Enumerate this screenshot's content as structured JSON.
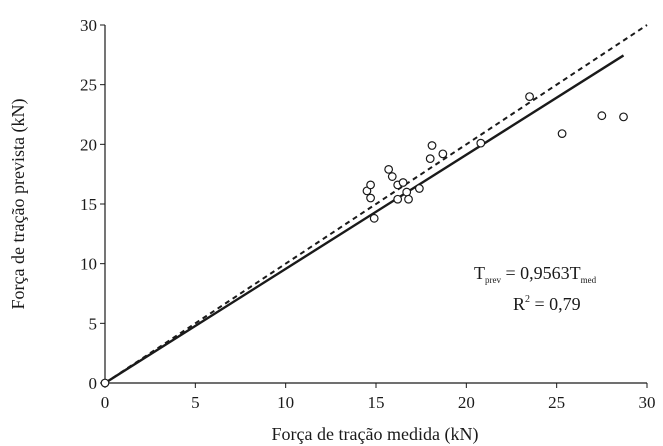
{
  "chart_data": {
    "type": "scatter",
    "xlabel": "Força de tração medida (kN)",
    "ylabel": "Força de tração prevista (kN)",
    "xlim": [
      0,
      30
    ],
    "ylim": [
      0,
      30
    ],
    "xticks": [
      "0",
      "5",
      "10",
      "15",
      "20",
      "25",
      "30"
    ],
    "yticks": [
      "0",
      "5",
      "10",
      "15",
      "20",
      "25",
      "30"
    ],
    "grid": false,
    "points": [
      {
        "x": 0,
        "y": 0
      },
      {
        "x": 14.5,
        "y": 16.1
      },
      {
        "x": 14.7,
        "y": 16.6
      },
      {
        "x": 14.7,
        "y": 15.5
      },
      {
        "x": 14.9,
        "y": 13.8
      },
      {
        "x": 15.7,
        "y": 17.9
      },
      {
        "x": 15.9,
        "y": 17.3
      },
      {
        "x": 16.2,
        "y": 16.6
      },
      {
        "x": 16.2,
        "y": 15.4
      },
      {
        "x": 16.5,
        "y": 16.8
      },
      {
        "x": 16.7,
        "y": 16.0
      },
      {
        "x": 16.8,
        "y": 15.4
      },
      {
        "x": 17.4,
        "y": 16.3
      },
      {
        "x": 18.0,
        "y": 18.8
      },
      {
        "x": 18.1,
        "y": 19.9
      },
      {
        "x": 18.7,
        "y": 19.2
      },
      {
        "x": 20.8,
        "y": 20.1
      },
      {
        "x": 23.5,
        "y": 24.0
      },
      {
        "x": 25.3,
        "y": 20.9
      },
      {
        "x": 27.5,
        "y": 22.4
      },
      {
        "x": 28.7,
        "y": 22.3
      }
    ],
    "lines": [
      {
        "style": "solid",
        "x": [
          0,
          28.7
        ],
        "y": [
          0,
          27.45
        ]
      },
      {
        "style": "dashed",
        "x": [
          0,
          30
        ],
        "y": [
          0,
          30
        ]
      }
    ],
    "annotation": {
      "line1": {
        "lhs": "T",
        "lhs_sub": "prev",
        "eq": " = 0,9563T",
        "rhs_sub": "med"
      },
      "line2": {
        "lhs": "R",
        "sup": "2",
        "eq": " = 0,79"
      }
    },
    "colors": {
      "axis": "#1a1a1a",
      "series": "#1a1a1a",
      "marker_fill": "#ffffff"
    }
  }
}
